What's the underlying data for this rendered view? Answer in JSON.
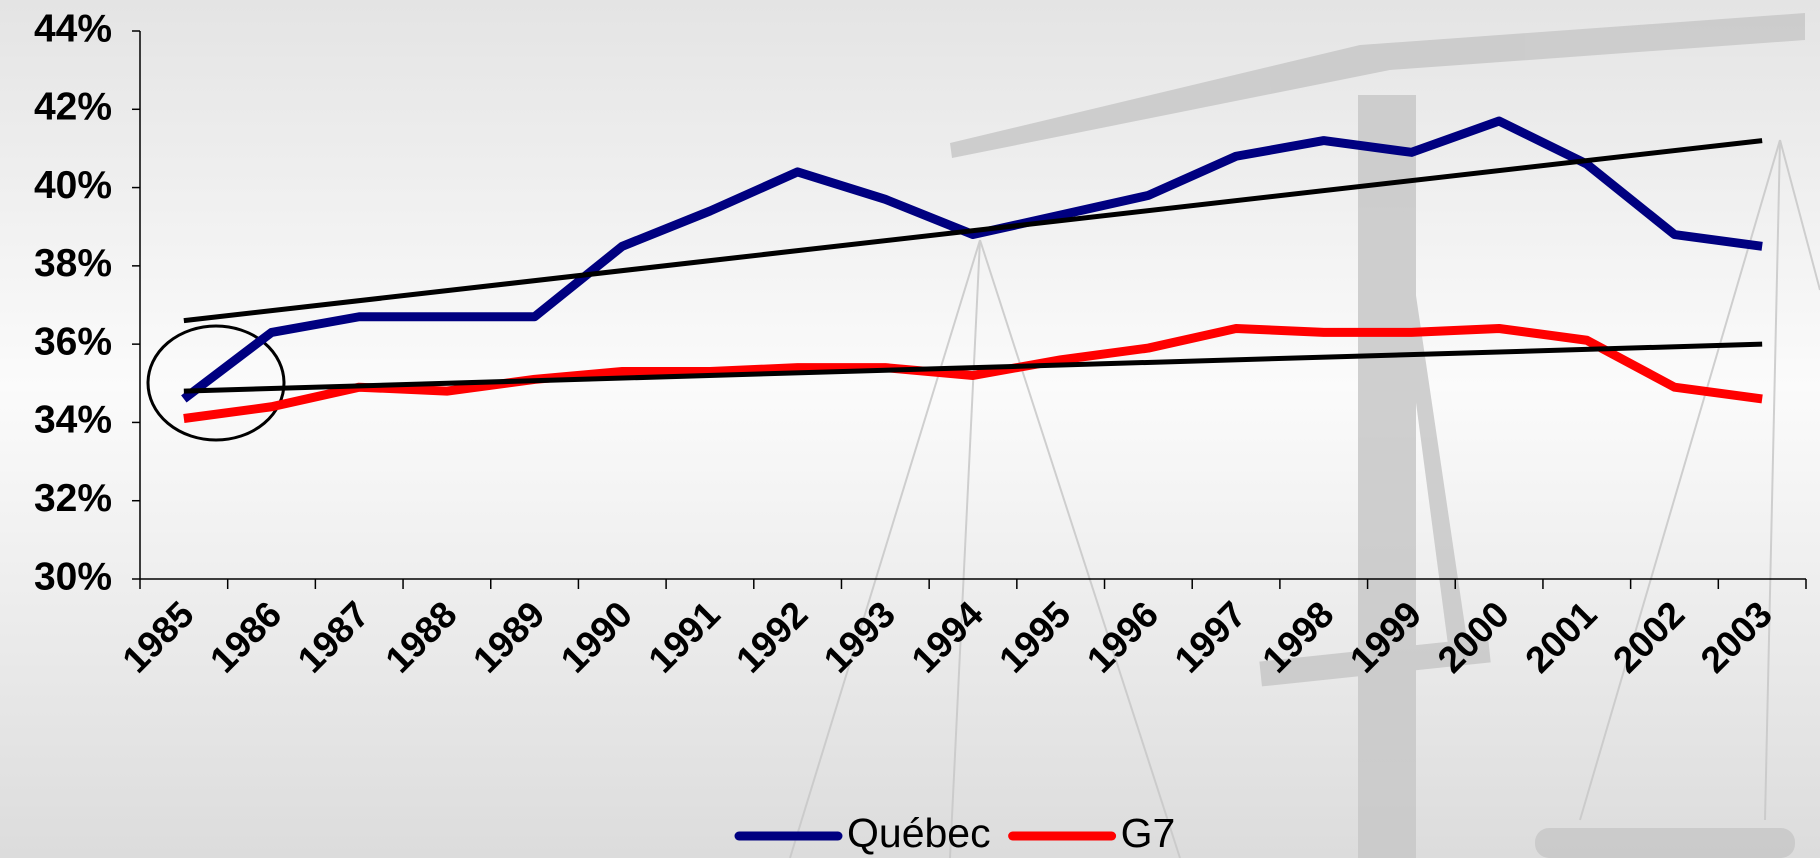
{
  "chart_data": {
    "type": "line",
    "categories": [
      "1985",
      "1986",
      "1987",
      "1988",
      "1989",
      "1990",
      "1991",
      "1992",
      "1993",
      "1994",
      "1995",
      "1996",
      "1997",
      "1998",
      "1999",
      "2000",
      "2001",
      "2002",
      "2003"
    ],
    "series": [
      {
        "name": "Québec",
        "color": "#000080",
        "values": [
          34.6,
          36.3,
          36.7,
          36.7,
          36.7,
          38.5,
          39.4,
          40.4,
          39.7,
          38.8,
          39.3,
          39.8,
          40.8,
          41.2,
          40.9,
          41.7,
          40.6,
          38.8,
          38.5
        ]
      },
      {
        "name": "G7",
        "color": "#ff0000",
        "values": [
          34.1,
          34.4,
          34.9,
          34.8,
          35.1,
          35.3,
          35.3,
          35.4,
          35.4,
          35.2,
          35.6,
          35.9,
          36.4,
          36.3,
          36.3,
          36.4,
          36.1,
          34.9,
          34.6
        ]
      }
    ],
    "trend_lines": [
      {
        "color": "#000000",
        "values": [
          36.6,
          41.2
        ]
      },
      {
        "color": "#000000",
        "values": [
          34.8,
          36.0
        ]
      }
    ],
    "ylim": [
      30,
      44
    ],
    "yticks": [
      {
        "value": 30,
        "label": "30%"
      },
      {
        "value": 32,
        "label": "32%"
      },
      {
        "value": 34,
        "label": "34%"
      },
      {
        "value": 36,
        "label": "36%"
      },
      {
        "value": 38,
        "label": "38%"
      },
      {
        "value": 40,
        "label": "40%"
      },
      {
        "value": 42,
        "label": "42%"
      },
      {
        "value": 44,
        "label": "44%"
      }
    ],
    "grid": false,
    "legend": "bottom"
  }
}
